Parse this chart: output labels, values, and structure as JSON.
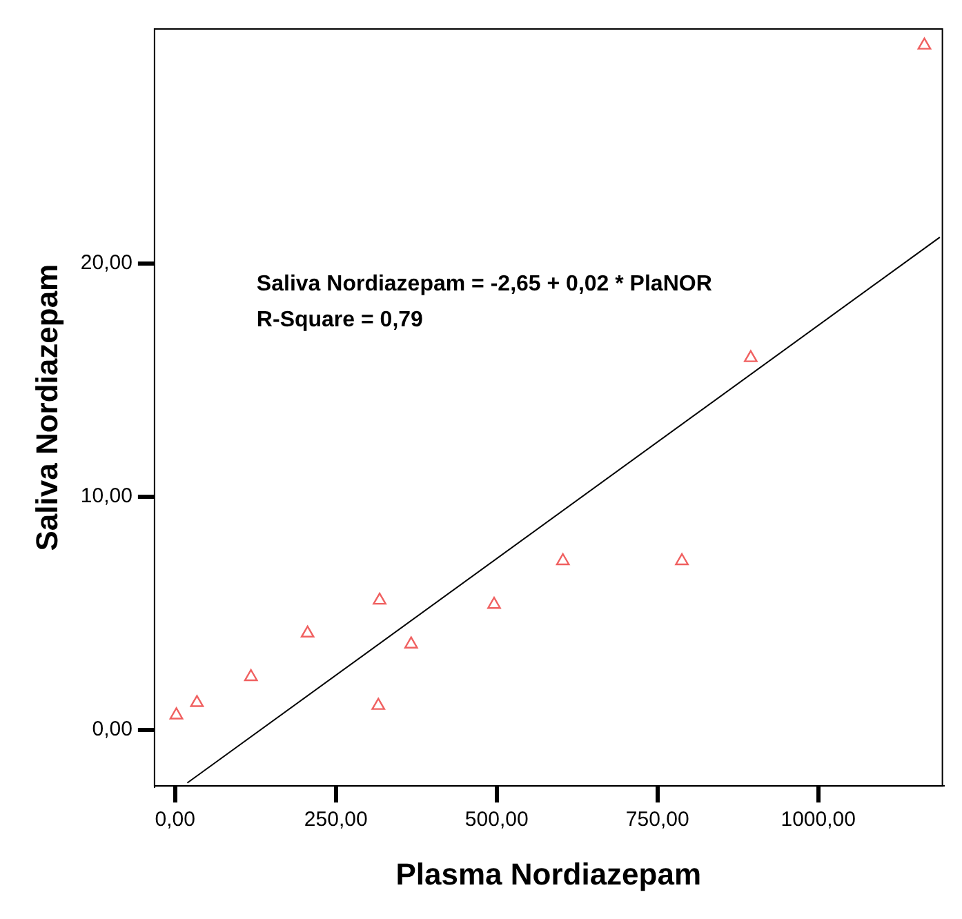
{
  "chart_data": {
    "type": "scatter",
    "xlabel": "Plasma Nordiazepam",
    "ylabel": "Saliva Nordiazepam",
    "annotations": [
      "Saliva Nordiazepam = -2,65 + 0,02 * PlaNOR",
      "R-Square = 0,79"
    ],
    "marker": "triangle",
    "xlim": [
      -32,
      1193
    ],
    "ylim": [
      -2.4,
      30.06
    ],
    "xticks": [
      {
        "value": 0,
        "label": "0,00"
      },
      {
        "value": 250,
        "label": "250,00"
      },
      {
        "value": 500,
        "label": "500,00"
      },
      {
        "value": 750,
        "label": "750,00"
      },
      {
        "value": 1000,
        "label": "1000,00"
      }
    ],
    "yticks": [
      {
        "value": 0,
        "label": "0,00"
      },
      {
        "value": 10,
        "label": "10,00"
      },
      {
        "value": 20,
        "label": "20,00"
      }
    ],
    "series": [
      {
        "color": "#f06060",
        "x": [
          2,
          34,
          118,
          206,
          318,
          316,
          367,
          496,
          603,
          788,
          895,
          1165
        ],
        "values": [
          0.64,
          1.17,
          2.28,
          4.15,
          5.56,
          1.05,
          3.68,
          5.38,
          7.25,
          7.25,
          15.96,
          29.36
        ]
      },
      {
        "type": "line",
        "marker": "none",
        "color": "#000000",
        "x": [
          19,
          1189
        ],
        "values": [
          -2.27,
          21.13
        ]
      }
    ]
  }
}
